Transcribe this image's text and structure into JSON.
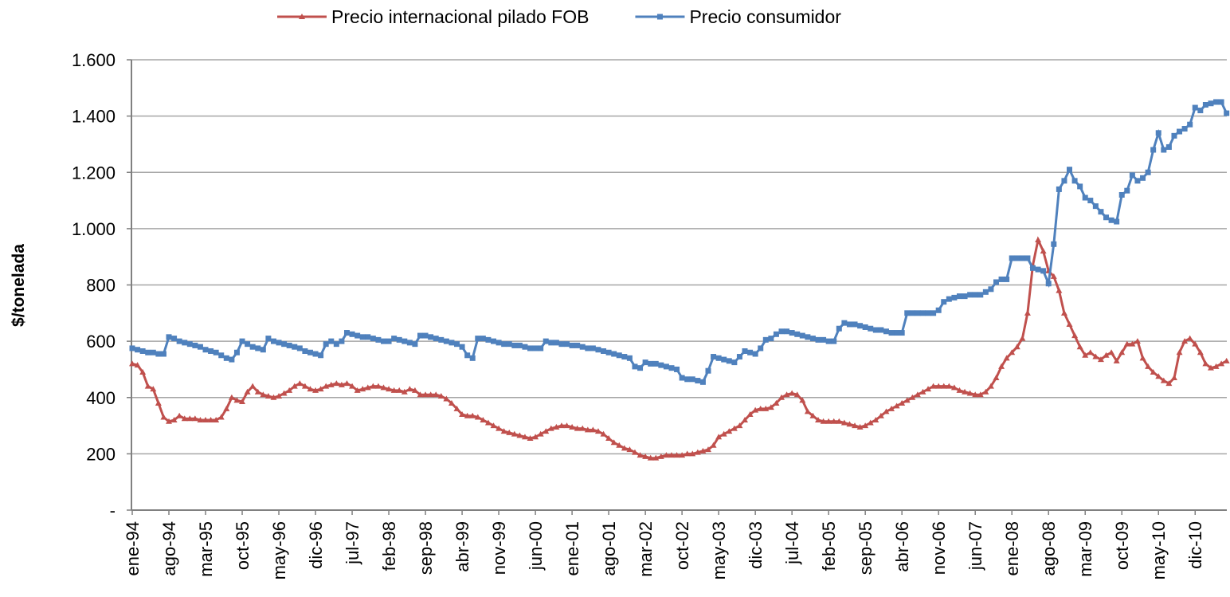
{
  "chart_data": {
    "type": "line",
    "y_label": "$/tonelada",
    "categories": [
      "ene-94",
      null,
      null,
      null,
      null,
      null,
      null,
      "ago-94",
      null,
      null,
      null,
      null,
      null,
      null,
      "mar-95",
      null,
      null,
      null,
      null,
      null,
      null,
      "oct-95",
      null,
      null,
      null,
      null,
      null,
      null,
      "may-96",
      null,
      null,
      null,
      null,
      null,
      null,
      "dic-96",
      null,
      null,
      null,
      null,
      null,
      null,
      "jul-97",
      null,
      null,
      null,
      null,
      null,
      null,
      "feb-98",
      null,
      null,
      null,
      null,
      null,
      null,
      "sep-98",
      null,
      null,
      null,
      null,
      null,
      null,
      "abr-99",
      null,
      null,
      null,
      null,
      null,
      null,
      "nov-99",
      null,
      null,
      null,
      null,
      null,
      null,
      "jun-00",
      null,
      null,
      null,
      null,
      null,
      null,
      "ene-01",
      null,
      null,
      null,
      null,
      null,
      null,
      "ago-01",
      null,
      null,
      null,
      null,
      null,
      null,
      "mar-02",
      null,
      null,
      null,
      null,
      null,
      null,
      "oct-02",
      null,
      null,
      null,
      null,
      null,
      null,
      "may-03",
      null,
      null,
      null,
      null,
      null,
      null,
      "dic-03",
      null,
      null,
      null,
      null,
      null,
      null,
      "jul-04",
      null,
      null,
      null,
      null,
      null,
      null,
      "feb-05",
      null,
      null,
      null,
      null,
      null,
      null,
      "sep-05",
      null,
      null,
      null,
      null,
      null,
      null,
      "abr-06",
      null,
      null,
      null,
      null,
      null,
      null,
      "nov-06",
      null,
      null,
      null,
      null,
      null,
      null,
      "jun-07",
      null,
      null,
      null,
      null,
      null,
      null,
      "ene-08",
      null,
      null,
      null,
      null,
      null,
      null,
      "ago-08",
      null,
      null,
      null,
      null,
      null,
      null,
      "mar-09",
      null,
      null,
      null,
      null,
      null,
      null,
      "oct-09",
      null,
      null,
      null,
      null,
      null,
      null,
      "may-10",
      null,
      null,
      null,
      null,
      null,
      null,
      "dic-10",
      null,
      null,
      null,
      null,
      null,
      null
    ],
    "series": [
      {
        "name": "Precio internacional pilado FOB",
        "color": "#c0504d",
        "marker": "triangle",
        "values": [
          520,
          515,
          490,
          440,
          430,
          380,
          330,
          315,
          320,
          335,
          325,
          325,
          325,
          320,
          320,
          320,
          320,
          330,
          360,
          400,
          390,
          385,
          420,
          440,
          420,
          410,
          405,
          400,
          405,
          415,
          425,
          440,
          450,
          440,
          430,
          425,
          430,
          440,
          445,
          450,
          445,
          450,
          440,
          425,
          430,
          435,
          440,
          440,
          435,
          430,
          425,
          425,
          420,
          430,
          425,
          410,
          410,
          410,
          410,
          405,
          395,
          380,
          360,
          340,
          335,
          335,
          330,
          320,
          310,
          300,
          290,
          280,
          275,
          270,
          265,
          260,
          255,
          260,
          270,
          280,
          290,
          295,
          300,
          300,
          295,
          290,
          290,
          285,
          285,
          280,
          270,
          255,
          240,
          230,
          220,
          215,
          205,
          195,
          190,
          185,
          185,
          190,
          195,
          195,
          195,
          195,
          200,
          200,
          205,
          210,
          215,
          230,
          260,
          270,
          280,
          290,
          300,
          320,
          340,
          355,
          360,
          360,
          365,
          380,
          400,
          410,
          415,
          410,
          390,
          350,
          335,
          320,
          315,
          315,
          315,
          315,
          310,
          305,
          300,
          295,
          300,
          310,
          320,
          335,
          350,
          360,
          370,
          380,
          390,
          400,
          410,
          420,
          430,
          440,
          440,
          440,
          440,
          435,
          425,
          420,
          415,
          410,
          410,
          420,
          440,
          470,
          510,
          540,
          560,
          580,
          610,
          700,
          870,
          960,
          920,
          850,
          830,
          780,
          700,
          660,
          620,
          580,
          550,
          560,
          545,
          535,
          550,
          560,
          530,
          560,
          590,
          590,
          600,
          540,
          510,
          490,
          475,
          460,
          450,
          470,
          560,
          600,
          610,
          590,
          560,
          520,
          505,
          510,
          520,
          530
        ]
      },
      {
        "name": "Precio consumidor",
        "color": "#4f81bd",
        "marker": "square",
        "values": [
          575,
          570,
          565,
          560,
          560,
          555,
          555,
          615,
          610,
          600,
          595,
          590,
          585,
          580,
          570,
          565,
          560,
          550,
          540,
          535,
          560,
          600,
          590,
          580,
          575,
          570,
          610,
          600,
          595,
          590,
          585,
          580,
          575,
          565,
          560,
          555,
          550,
          590,
          600,
          590,
          600,
          630,
          625,
          620,
          615,
          615,
          610,
          605,
          600,
          600,
          610,
          605,
          600,
          595,
          590,
          620,
          620,
          615,
          610,
          605,
          600,
          595,
          590,
          580,
          550,
          540,
          610,
          610,
          605,
          600,
          595,
          590,
          590,
          585,
          585,
          580,
          575,
          575,
          575,
          600,
          595,
          595,
          590,
          590,
          585,
          585,
          580,
          575,
          575,
          570,
          565,
          560,
          555,
          550,
          545,
          540,
          510,
          505,
          525,
          520,
          520,
          515,
          510,
          505,
          500,
          470,
          465,
          465,
          460,
          455,
          495,
          545,
          540,
          535,
          530,
          525,
          545,
          565,
          560,
          555,
          575,
          605,
          610,
          625,
          635,
          635,
          630,
          625,
          620,
          615,
          610,
          605,
          605,
          600,
          600,
          645,
          665,
          660,
          660,
          655,
          650,
          645,
          640,
          640,
          635,
          630,
          630,
          630,
          700,
          700,
          700,
          700,
          700,
          700,
          710,
          740,
          750,
          755,
          760,
          760,
          765,
          765,
          765,
          775,
          785,
          810,
          820,
          820,
          895,
          895,
          895,
          895,
          860,
          855,
          850,
          805,
          945,
          1140,
          1170,
          1210,
          1170,
          1150,
          1110,
          1100,
          1080,
          1060,
          1040,
          1030,
          1025,
          1120,
          1135,
          1190,
          1170,
          1180,
          1200,
          1280,
          1340,
          1280,
          1290,
          1330,
          1345,
          1355,
          1370,
          1430,
          1420,
          1440,
          1445,
          1450,
          1450,
          1410
        ]
      }
    ],
    "ylim": [
      0,
      1600
    ],
    "yticks": [
      {
        "value": 0,
        "label": "-"
      },
      200,
      400,
      600,
      800,
      {
        "value": 1000,
        "label": "1.000"
      },
      {
        "value": 1200,
        "label": "1.200"
      },
      {
        "value": 1400,
        "label": "1.400"
      },
      {
        "value": 1600,
        "label": "1.600"
      }
    ],
    "grid": true,
    "legend": "top"
  }
}
